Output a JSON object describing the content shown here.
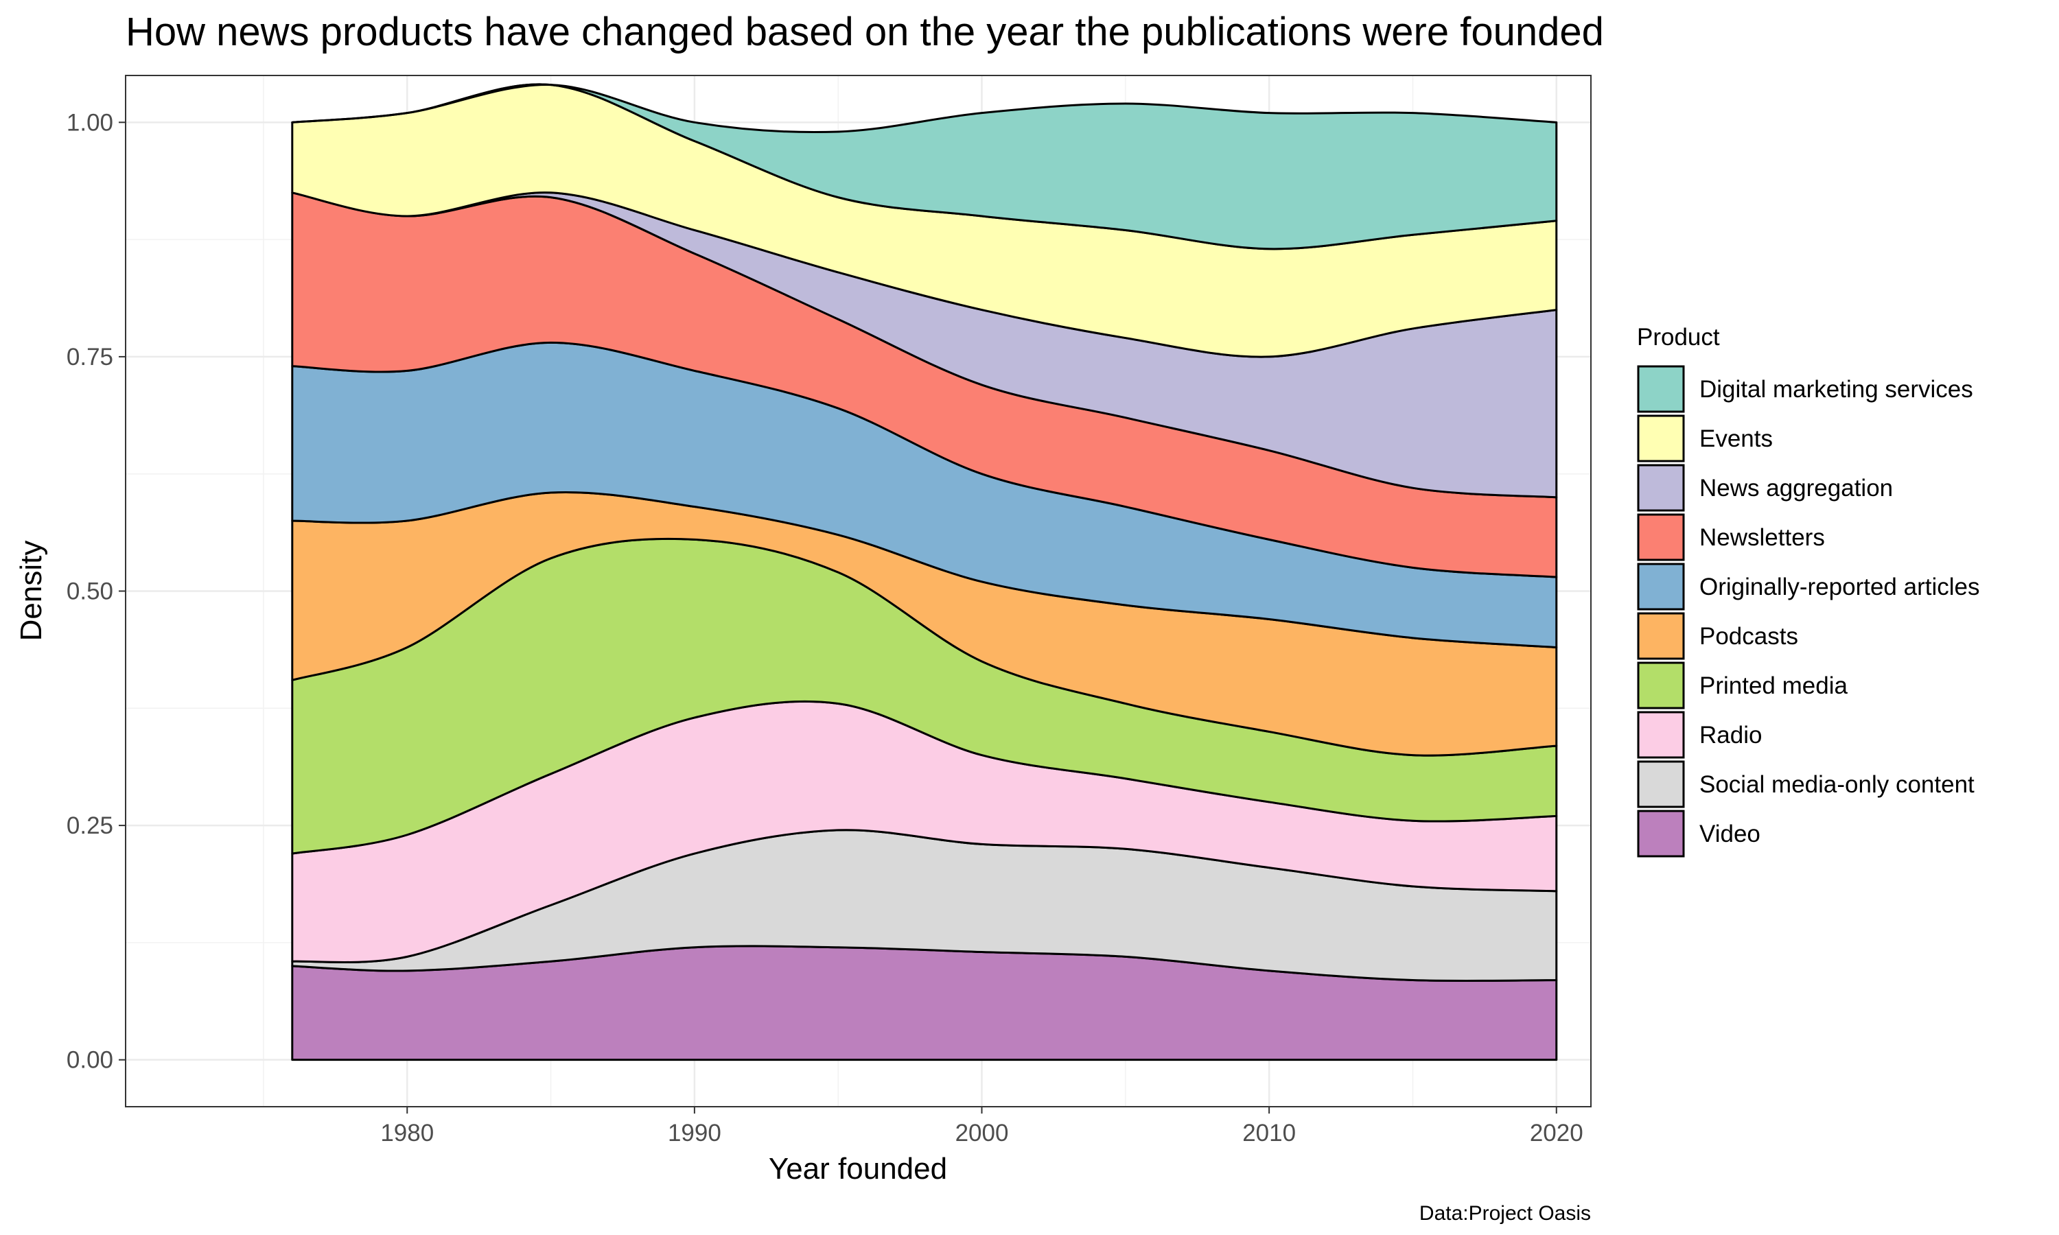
{
  "chart_data": {
    "type": "area",
    "stacked": true,
    "normalized": true,
    "title": "How news products have changed based on the year the publications were founded",
    "xlabel": "Year founded",
    "ylabel": "Density",
    "xlim": [
      1970.2,
      2021.2
    ],
    "ylim": [
      -0.05,
      1.05
    ],
    "x_ticks": [
      1980,
      1990,
      2000,
      2010,
      2020
    ],
    "x_tick_labels": [
      "1980",
      "1990",
      "2000",
      "2010",
      "2020"
    ],
    "y_ticks": [
      0,
      0.25,
      0.5,
      0.75,
      1
    ],
    "y_tick_labels": [
      "0.00",
      "0.25",
      "0.50",
      "0.75",
      "1.00"
    ],
    "grid": true,
    "legend_title": "Product",
    "legend_position": "right",
    "caption": "Data:Project Oasis",
    "x": [
      1976,
      1980,
      1985,
      1990,
      1995,
      2000,
      2005,
      2010,
      2015,
      2020
    ],
    "series_order_bottom_to_top": [
      "Video",
      "Social media-only content",
      "Radio",
      "Printed media",
      "Podcasts",
      "Originally-reported articles",
      "Newsletters",
      "News aggregation",
      "Events",
      "Digital marketing services"
    ],
    "series": [
      {
        "name": "Digital marketing services",
        "color": "#8DD3C7",
        "values": [
          0.0,
          0.0,
          0.0,
          0.02,
          0.07,
          0.11,
          0.135,
          0.145,
          0.13,
          0.105
        ]
      },
      {
        "name": "Events",
        "color": "#FFFFB3",
        "values": [
          0.075,
          0.11,
          0.115,
          0.095,
          0.08,
          0.1,
          0.115,
          0.115,
          0.1,
          0.095
        ]
      },
      {
        "name": "News aggregation",
        "color": "#BEBADA",
        "values": [
          0.0,
          0.0,
          0.005,
          0.025,
          0.05,
          0.08,
          0.085,
          0.1,
          0.17,
          0.2
        ]
      },
      {
        "name": "Newsletters",
        "color": "#FB8072",
        "values": [
          0.185,
          0.165,
          0.155,
          0.125,
          0.095,
          0.095,
          0.095,
          0.095,
          0.085,
          0.085
        ]
      },
      {
        "name": "Originally-reported articles",
        "color": "#80B1D3",
        "values": [
          0.165,
          0.16,
          0.16,
          0.145,
          0.135,
          0.115,
          0.105,
          0.085,
          0.075,
          0.075
        ]
      },
      {
        "name": "Podcasts",
        "color": "#FDB462",
        "values": [
          0.17,
          0.135,
          0.07,
          0.035,
          0.04,
          0.085,
          0.105,
          0.12,
          0.125,
          0.105
        ]
      },
      {
        "name": "Printed media",
        "color": "#B3DE69",
        "values": [
          0.185,
          0.2,
          0.23,
          0.19,
          0.14,
          0.1,
          0.08,
          0.075,
          0.07,
          0.075
        ]
      },
      {
        "name": "Radio",
        "color": "#FCCDE5",
        "values": [
          0.115,
          0.13,
          0.14,
          0.145,
          0.135,
          0.095,
          0.075,
          0.07,
          0.07,
          0.08
        ]
      },
      {
        "name": "Social media-only content",
        "color": "#D9D9D9",
        "values": [
          0.005,
          0.015,
          0.06,
          0.1,
          0.125,
          0.115,
          0.115,
          0.11,
          0.1,
          0.095
        ]
      },
      {
        "name": "Video",
        "color": "#BC80BD",
        "values": [
          0.1,
          0.095,
          0.105,
          0.12,
          0.12,
          0.115,
          0.11,
          0.095,
          0.085,
          0.085
        ]
      }
    ]
  }
}
